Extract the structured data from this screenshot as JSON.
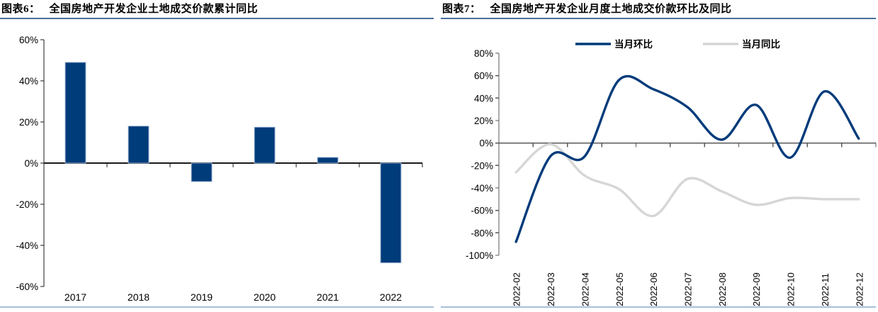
{
  "page_background": "#ffffff",
  "chart_data": [
    {
      "type": "bar",
      "tag": "图表6：",
      "title": "全国房地产开发企业土地成交价款累计同比",
      "categories": [
        "2017",
        "2018",
        "2019",
        "2020",
        "2021",
        "2022"
      ],
      "values": [
        49,
        18,
        -9,
        17.5,
        2.8,
        -48.5
      ],
      "unit": "%",
      "ylim": [
        -60,
        60
      ],
      "ytick_step": 20,
      "ytick_labels": [
        "60%",
        "40%",
        "20%",
        "0%",
        "-20%",
        "-40%",
        "-60%"
      ],
      "grid": false,
      "legend": null,
      "bar_color": "#003b7a",
      "bar_edge_color": "#a6bbd8",
      "axis_color": "#1a1a1a"
    },
    {
      "type": "line",
      "tag": "图表7：",
      "title": "全国房地产开发企业月度土地成交价款环比及同比",
      "x": [
        "2022-02",
        "2022-03",
        "2022-04",
        "2022-05",
        "2022-06",
        "2022-07",
        "2022-08",
        "2022-09",
        "2022-10",
        "2022-11",
        "2022-12"
      ],
      "series": [
        {
          "name": "当月环比",
          "color": "#003b7a",
          "values": [
            -88,
            -12,
            -12,
            56,
            48,
            32,
            3,
            34,
            -13,
            46,
            4
          ]
        },
        {
          "name": "当月同比",
          "color": "#d6d6d6",
          "values": [
            -26,
            -1,
            -29,
            -41,
            -65,
            -32,
            -43,
            -55,
            -49,
            -50,
            -50
          ]
        }
      ],
      "unit": "%",
      "ylim": [
        -100,
        80
      ],
      "ytick_step": 20,
      "ytick_labels": [
        "80%",
        "60%",
        "40%",
        "20%",
        "0%",
        "-20%",
        "-40%",
        "-60%",
        "-80%",
        "-100%"
      ],
      "grid": false,
      "legend_position": "top",
      "smooth": true,
      "axis_color": "#595959"
    }
  ],
  "rules": {
    "title_rule_color": "#4a6d9b",
    "bottom_rule_color": "#a7bfda"
  }
}
